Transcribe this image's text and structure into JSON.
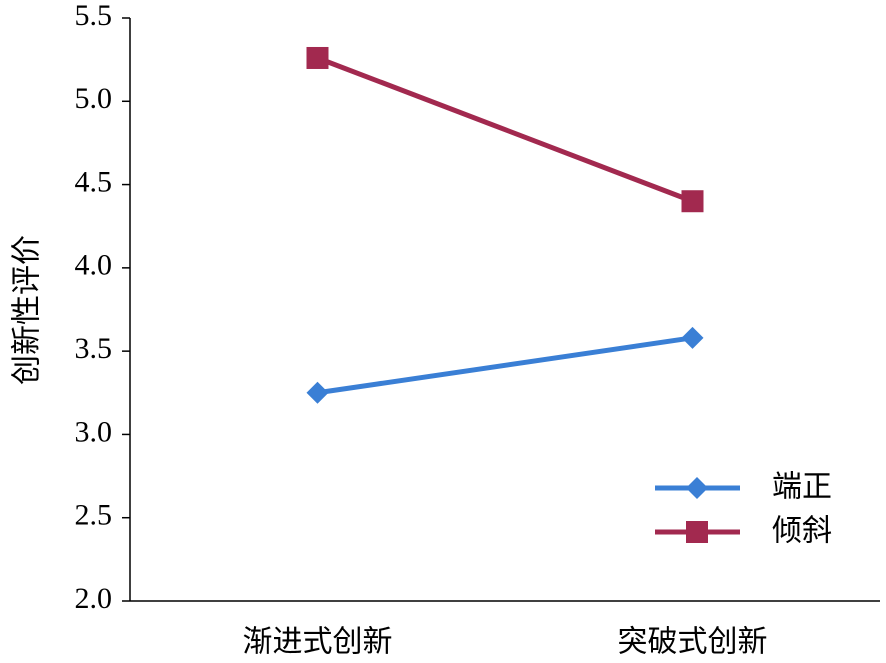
{
  "chart_data": {
    "type": "line",
    "y_label": "创新性评价",
    "categories": [
      "渐进式创新",
      "突破式创新"
    ],
    "series": [
      {
        "name": "端正",
        "color": "#3a7fd5",
        "marker": "diamond",
        "values": [
          3.25,
          3.58
        ]
      },
      {
        "name": "倾斜",
        "color": "#a2294f",
        "marker": "square",
        "values": [
          5.26,
          4.4
        ]
      }
    ],
    "ylim": [
      2.0,
      5.5
    ],
    "yticks": [
      {
        "value": 2,
        "label": "2.0"
      },
      {
        "value": 2.5,
        "label": "2.5"
      },
      {
        "value": 3,
        "label": "3.0"
      },
      {
        "value": 3.5,
        "label": "3.5"
      },
      {
        "value": 4,
        "label": "4.0"
      },
      {
        "value": 4.5,
        "label": "4.5"
      },
      {
        "value": 5,
        "label": "5.0"
      },
      {
        "value": 5.5,
        "label": "5.5"
      }
    ],
    "legend": "lower right"
  }
}
